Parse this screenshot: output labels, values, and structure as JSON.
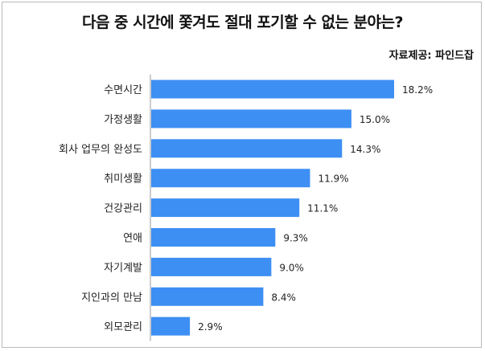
{
  "chart_data": {
    "type": "bar",
    "orientation": "horizontal",
    "title": "다음 중 시간에 쫓겨도 절대 포기할 수 없는 분야는?",
    "source": "자료제공: 파인드잡",
    "categories": [
      "수면시간",
      "가정생활",
      "회사 업무의 완성도",
      "취미생활",
      "건강관리",
      "연애",
      "자기계발",
      "지인과의 만남",
      "외모관리"
    ],
    "values": [
      18.2,
      15.0,
      14.3,
      11.9,
      11.1,
      9.3,
      9.0,
      8.4,
      2.9
    ],
    "value_labels": [
      "18.2%",
      "15.0%",
      "14.3%",
      "11.9%",
      "11.1%",
      "9.3%",
      "9.0%",
      "8.4%",
      "2.9%"
    ],
    "unit": "%",
    "xlim": [
      0,
      18.2
    ],
    "bar_color": "#3d8ff3",
    "grid": false,
    "legend": "none"
  }
}
